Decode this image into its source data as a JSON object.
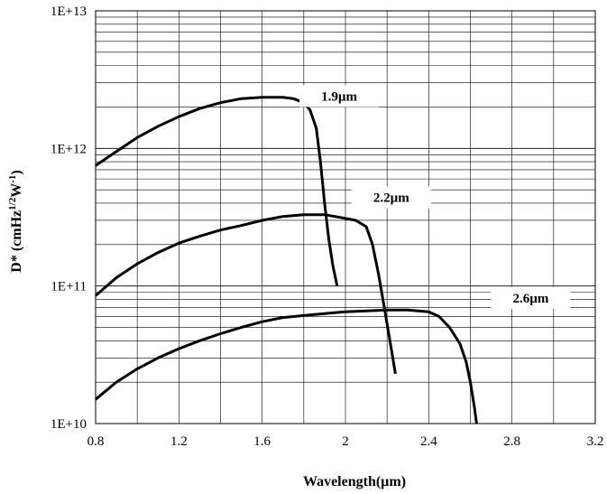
{
  "chart_data": {
    "type": "line",
    "title": "",
    "xlabel": "Wavelength(µm)",
    "ylabel_main": "D* (cmHz",
    "ylabel_sup1": "1/2",
    "ylabel_mid": "W",
    "ylabel_sup2": "-1",
    "ylabel_end": ")",
    "xlim": [
      0.8,
      3.2
    ],
    "ylim": [
      10000000000,
      10000000000000
    ],
    "yscale": "log",
    "grid": true,
    "legend": "inline labels",
    "xticks": [
      "0.8",
      "1.2",
      "1.6",
      "2",
      "2.4",
      "2.8",
      "3.2"
    ],
    "yticks": [
      "1E+10",
      "1E+11",
      "1E+12",
      "1E+13"
    ],
    "series": [
      {
        "name": "1.9µm",
        "x": [
          0.8,
          0.9,
          1.0,
          1.1,
          1.2,
          1.3,
          1.4,
          1.5,
          1.6,
          1.65,
          1.7,
          1.75,
          1.8,
          1.83,
          1.86,
          1.88,
          1.9,
          1.92,
          1.94,
          1.96
        ],
        "y": [
          750000000000,
          950000000000,
          1200000000000,
          1450000000000,
          1700000000000,
          1950000000000,
          2150000000000,
          2300000000000,
          2350000000000,
          2350000000000,
          2350000000000,
          2300000000000,
          2150000000000,
          1900000000000,
          1400000000000,
          800000000000,
          400000000000,
          220000000000,
          140000000000,
          100000000000
        ]
      },
      {
        "name": "2.2µm",
        "x": [
          0.8,
          0.9,
          1.0,
          1.1,
          1.2,
          1.3,
          1.4,
          1.5,
          1.6,
          1.7,
          1.8,
          1.9,
          2.0,
          2.05,
          2.1,
          2.13,
          2.16,
          2.19,
          2.22,
          2.24
        ],
        "y": [
          85000000000,
          115000000000,
          145000000000,
          175000000000,
          205000000000,
          230000000000,
          255000000000,
          275000000000,
          300000000000,
          320000000000,
          330000000000,
          330000000000,
          310000000000,
          300000000000,
          270000000000,
          200000000000,
          120000000000,
          65000000000,
          35000000000,
          23000000000
        ]
      },
      {
        "name": "2.6µm",
        "x": [
          0.8,
          0.9,
          1.0,
          1.1,
          1.2,
          1.3,
          1.4,
          1.5,
          1.6,
          1.7,
          1.8,
          1.9,
          2.0,
          2.1,
          2.2,
          2.3,
          2.4,
          2.45,
          2.5,
          2.55,
          2.58,
          2.6,
          2.62,
          2.63
        ],
        "y": [
          15000000000,
          20000000000,
          25000000000,
          30000000000,
          35000000000,
          40000000000,
          45000000000,
          50000000000,
          55000000000,
          59000000000,
          61000000000,
          63000000000,
          65000000000,
          66000000000,
          67000000000,
          67000000000,
          65000000000,
          60000000000,
          50000000000,
          38000000000,
          28000000000,
          20000000000,
          13000000000,
          10000000000
        ]
      }
    ]
  }
}
